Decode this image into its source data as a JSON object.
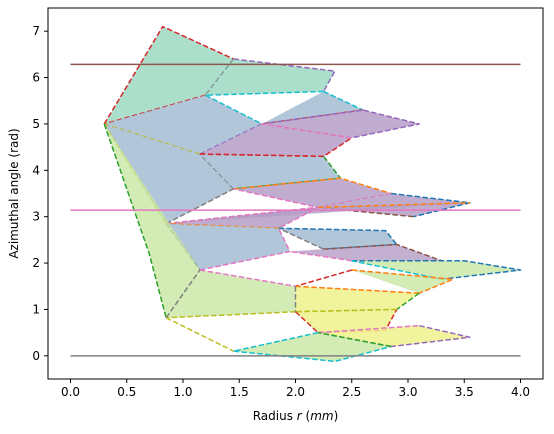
{
  "chart_data": {
    "type": "area",
    "title": "",
    "xlabel_prefix": "Radius ",
    "xlabel_var": "r",
    "xlabel_unit_open": " (",
    "xlabel_unit": "mm",
    "xlabel_unit_close": ")",
    "ylabel": "Azimuthal angle (rad)",
    "xlim": [
      -0.2,
      4.2
    ],
    "ylim": [
      -0.5,
      7.5
    ],
    "x_ticks": [
      0.0,
      0.5,
      1.0,
      1.5,
      2.0,
      2.5,
      3.0,
      3.5,
      4.0
    ],
    "x_tick_labels": [
      "0.0",
      "0.5",
      "1.0",
      "1.5",
      "2.0",
      "2.5",
      "3.0",
      "3.5",
      "4.0"
    ],
    "y_ticks": [
      0,
      1,
      2,
      3,
      4,
      5,
      6,
      7
    ],
    "y_tick_labels": [
      "0",
      "1",
      "2",
      "3",
      "4",
      "5",
      "6",
      "7"
    ],
    "grid": false,
    "hlines": [
      {
        "y": 0.0,
        "color": "#7f7f7f",
        "x_range": [
          0.0,
          4.0
        ]
      },
      {
        "y": 3.1416,
        "color": "#e377c2",
        "x_range": [
          0.0,
          4.0
        ]
      },
      {
        "y": 6.2832,
        "color": "#8c564b",
        "x_range": [
          0.0,
          4.0
        ]
      }
    ],
    "polygons": [
      {
        "fill": "#8fd4ba",
        "opacity": 0.75,
        "edges": [
          [
            "#d62728",
            [
              [
                0.3,
                5.0
              ],
              [
                0.82,
                7.1
              ],
              [
                1.45,
                6.4
              ]
            ]
          ],
          [
            "#7f7f7f",
            [
              [
                1.45,
                6.4
              ],
              [
                1.2,
                5.62
              ]
            ]
          ],
          [
            "#d62728",
            [
              [
                1.2,
                5.62
              ],
              [
                0.3,
                5.0
              ]
            ]
          ]
        ]
      },
      {
        "fill": "#8fd4ba",
        "opacity": 0.75,
        "edges": [
          [
            "#9467bd",
            [
              [
                1.45,
                6.4
              ],
              [
                2.35,
                6.14
              ],
              [
                2.25,
                5.7
              ]
            ]
          ],
          [
            "#17becf",
            [
              [
                2.25,
                5.7
              ],
              [
                1.2,
                5.62
              ]
            ]
          ]
        ]
      },
      {
        "fill": "#a5bcd3",
        "opacity": 0.85,
        "edges": [
          [
            "#17becf",
            [
              [
                1.2,
                5.62
              ],
              [
                1.7,
                5.0
              ]
            ]
          ],
          [
            "#9467bd",
            [
              [
                1.7,
                5.0
              ],
              [
                1.15,
                4.35
              ]
            ]
          ],
          [
            "#bcbd22",
            [
              [
                1.15,
                4.35
              ],
              [
                0.3,
                5.0
              ]
            ]
          ]
        ]
      },
      {
        "fill": "#a5bcd3",
        "opacity": 0.85,
        "edges": [
          [
            "#17becf",
            [
              [
                2.25,
                5.7
              ],
              [
                2.6,
                5.3
              ]
            ]
          ],
          [
            "#d62728",
            [
              [
                2.6,
                5.3
              ],
              [
                1.7,
                5.0
              ]
            ]
          ]
        ]
      },
      {
        "fill": "#b59ec6",
        "opacity": 0.85,
        "edges": [
          [
            "#9467bd",
            [
              [
                1.7,
                5.0
              ],
              [
                2.6,
                5.3
              ],
              [
                3.1,
                5.0
              ],
              [
                2.5,
                4.7
              ]
            ]
          ],
          [
            "#e377c2",
            [
              [
                2.5,
                4.7
              ],
              [
                1.7,
                5.0
              ]
            ]
          ]
        ]
      },
      {
        "fill": "#b59ec6",
        "opacity": 0.85,
        "edges": [
          [
            "#d62728",
            [
              [
                1.15,
                4.35
              ],
              [
                2.25,
                4.3
              ],
              [
                2.5,
                4.7
              ]
            ]
          ],
          [
            "#e377c2",
            [
              [
                2.5,
                4.7
              ],
              [
                1.7,
                5.0
              ]
            ]
          ]
        ]
      },
      {
        "fill": "#a5bcd3",
        "opacity": 0.85,
        "edges": [
          [
            "#bcbd22",
            [
              [
                0.3,
                5.0
              ],
              [
                0.85,
                2.85
              ]
            ]
          ],
          [
            "#7f7f7f",
            [
              [
                0.85,
                2.85
              ],
              [
                1.45,
                3.6
              ]
            ]
          ],
          [
            "#7f7f7f",
            [
              [
                1.45,
                3.6
              ],
              [
                1.15,
                4.35
              ]
            ]
          ]
        ]
      },
      {
        "fill": "#a5bcd3",
        "opacity": 0.85,
        "edges": [
          [
            "#d62728",
            [
              [
                1.15,
                4.35
              ],
              [
                2.25,
                4.3
              ]
            ]
          ],
          [
            "#2ca02c",
            [
              [
                2.25,
                4.3
              ],
              [
                2.4,
                3.83
              ],
              [
                1.45,
                3.6
              ]
            ]
          ]
        ]
      },
      {
        "fill": "#b59ec6",
        "opacity": 0.85,
        "edges": [
          [
            "#ff7f0e",
            [
              [
                1.45,
                3.6
              ],
              [
                2.4,
                3.83
              ],
              [
                2.85,
                3.5
              ]
            ]
          ],
          [
            "#e377c2",
            [
              [
                2.85,
                3.5
              ],
              [
                2.2,
                3.2
              ],
              [
                1.45,
                3.6
              ]
            ]
          ]
        ]
      },
      {
        "fill": "#b59ec6",
        "opacity": 0.85,
        "edges": [
          [
            "#1f77b4",
            [
              [
                2.85,
                3.5
              ],
              [
                3.55,
                3.3
              ],
              [
                3.05,
                3.0
              ]
            ]
          ],
          [
            "#8c564b",
            [
              [
                3.05,
                3.0
              ],
              [
                2.2,
                3.2
              ]
            ]
          ]
        ]
      },
      {
        "fill": "#b59ec6",
        "opacity": 0.85,
        "edges": [
          [
            "#ff7f0e",
            [
              [
                2.2,
                3.2
              ],
              [
                3.55,
                3.3
              ]
            ]
          ],
          [
            "#7f7f7f",
            [
              [
                0.85,
                2.85
              ],
              [
                2.2,
                3.2
              ]
            ]
          ]
        ]
      },
      {
        "fill": "#b59ec6",
        "opacity": 0.85,
        "edges": [
          [
            "#e377c2",
            [
              [
                0.85,
                2.85
              ],
              [
                2.2,
                3.2
              ],
              [
                1.85,
                2.75
              ]
            ]
          ],
          [
            "#ff7f0e",
            [
              [
                1.85,
                2.75
              ],
              [
                0.85,
                2.85
              ]
            ]
          ]
        ]
      },
      {
        "fill": "#a5bcd3",
        "opacity": 0.85,
        "edges": [
          [
            "#1f77b4",
            [
              [
                1.85,
                2.75
              ],
              [
                2.8,
                2.7
              ],
              [
                2.9,
                2.4
              ],
              [
                2.25,
                2.3
              ]
            ]
          ],
          [
            "#7f7f7f",
            [
              [
                2.25,
                2.3
              ],
              [
                1.85,
                2.75
              ]
            ]
          ]
        ]
      },
      {
        "fill": "#a5bcd3",
        "opacity": 0.85,
        "edges": [
          [
            "#7f7f7f",
            [
              [
                0.85,
                2.85
              ],
              [
                1.15,
                1.85
              ]
            ]
          ],
          [
            "#e377c2",
            [
              [
                1.15,
                1.85
              ],
              [
                1.95,
                2.25
              ],
              [
                1.85,
                2.75
              ]
            ]
          ]
        ]
      },
      {
        "fill": "#b59ec6",
        "opacity": 0.8,
        "edges": [
          [
            "#8c564b",
            [
              [
                2.25,
                2.3
              ],
              [
                2.9,
                2.4
              ],
              [
                3.3,
                2.05
              ],
              [
                2.5,
                2.05
              ]
            ]
          ],
          [
            "#e377c2",
            [
              [
                2.5,
                2.05
              ],
              [
                1.95,
                2.25
              ]
            ]
          ]
        ]
      },
      {
        "fill": "#c8e6a3",
        "opacity": 0.8,
        "edges": [
          [
            "#1f77b4",
            [
              [
                2.5,
                2.05
              ],
              [
                3.5,
                2.05
              ],
              [
                4.0,
                1.85
              ],
              [
                3.3,
                1.65
              ]
            ]
          ],
          [
            "#17becf",
            [
              [
                3.3,
                1.65
              ],
              [
                2.5,
                2.05
              ]
            ]
          ]
        ]
      },
      {
        "fill": "#c8e6a3",
        "opacity": 0.8,
        "edges": [
          [
            "#ff7f0e",
            [
              [
                2.5,
                1.85
              ],
              [
                3.4,
                1.65
              ],
              [
                3.1,
                1.35
              ]
            ]
          ],
          [
            "#d62728",
            [
              [
                2.5,
                1.85
              ],
              [
                2.0,
                1.5
              ]
            ]
          ]
        ]
      },
      {
        "fill": "#eef28c",
        "opacity": 0.85,
        "edges": [
          [
            "#ff7f0e",
            [
              [
                2.0,
                1.5
              ],
              [
                3.1,
                1.35
              ]
            ]
          ],
          [
            "#2ca02c",
            [
              [
                3.1,
                1.35
              ],
              [
                2.9,
                1.0
              ]
            ]
          ],
          [
            "#bcbd22",
            [
              [
                2.9,
                1.0
              ],
              [
                2.0,
                0.95
              ]
            ]
          ]
        ]
      },
      {
        "fill": "#c8e6a3",
        "opacity": 0.8,
        "edges": [
          [
            "#e377c2",
            [
              [
                1.15,
                1.85
              ],
              [
                2.0,
                1.5
              ]
            ]
          ],
          [
            "#7f7f7f",
            [
              [
                2.0,
                1.5
              ],
              [
                2.0,
                0.95
              ]
            ]
          ],
          [
            "#bcbd22",
            [
              [
                2.0,
                0.95
              ],
              [
                0.85,
                0.82
              ]
            ]
          ]
        ]
      },
      {
        "fill": "#c8e6a3",
        "opacity": 0.8,
        "edges": [
          [
            "#2ca02c",
            [
              [
                0.3,
                5.0
              ],
              [
                0.7,
                2.2
              ],
              [
                0.85,
                0.82
              ]
            ]
          ],
          [
            "#7f7f7f",
            [
              [
                0.85,
                0.82
              ],
              [
                1.15,
                1.85
              ]
            ]
          ]
        ]
      },
      {
        "fill": "#eef28c",
        "opacity": 0.85,
        "edges": [
          [
            "#d62728",
            [
              [
                2.0,
                0.95
              ],
              [
                2.2,
                0.5
              ],
              [
                2.8,
                0.55
              ],
              [
                2.9,
                1.0
              ]
            ]
          ],
          [
            "#bcbd22",
            [
              [
                2.9,
                1.0
              ],
              [
                2.0,
                0.95
              ]
            ]
          ]
        ]
      },
      {
        "fill": "#eef28c",
        "opacity": 0.85,
        "edges": [
          [
            "#e377c2",
            [
              [
                2.2,
                0.5
              ],
              [
                3.1,
                0.65
              ]
            ]
          ],
          [
            "#9467bd",
            [
              [
                3.1,
                0.65
              ],
              [
                3.55,
                0.4
              ],
              [
                2.85,
                0.2
              ]
            ]
          ],
          [
            "#7f7f7f",
            [
              [
                2.85,
                0.2
              ],
              [
                2.2,
                0.5
              ]
            ]
          ]
        ]
      },
      {
        "fill": "#c8e6a3",
        "opacity": 0.8,
        "edges": [
          [
            "#bcbd22",
            [
              [
                0.85,
                0.82
              ],
              [
                1.45,
                0.1
              ]
            ]
          ],
          [
            "#17becf",
            [
              [
                1.45,
                0.1
              ],
              [
                2.35,
                -0.12
              ],
              [
                2.85,
                0.2
              ]
            ]
          ],
          [
            "#2ca02c",
            [
              [
                2.85,
                0.2
              ],
              [
                2.2,
                0.5
              ]
            ]
          ],
          [
            "#17becf",
            [
              [
                2.2,
                0.5
              ],
              [
                1.45,
                0.1
              ]
            ]
          ]
        ]
      }
    ]
  }
}
